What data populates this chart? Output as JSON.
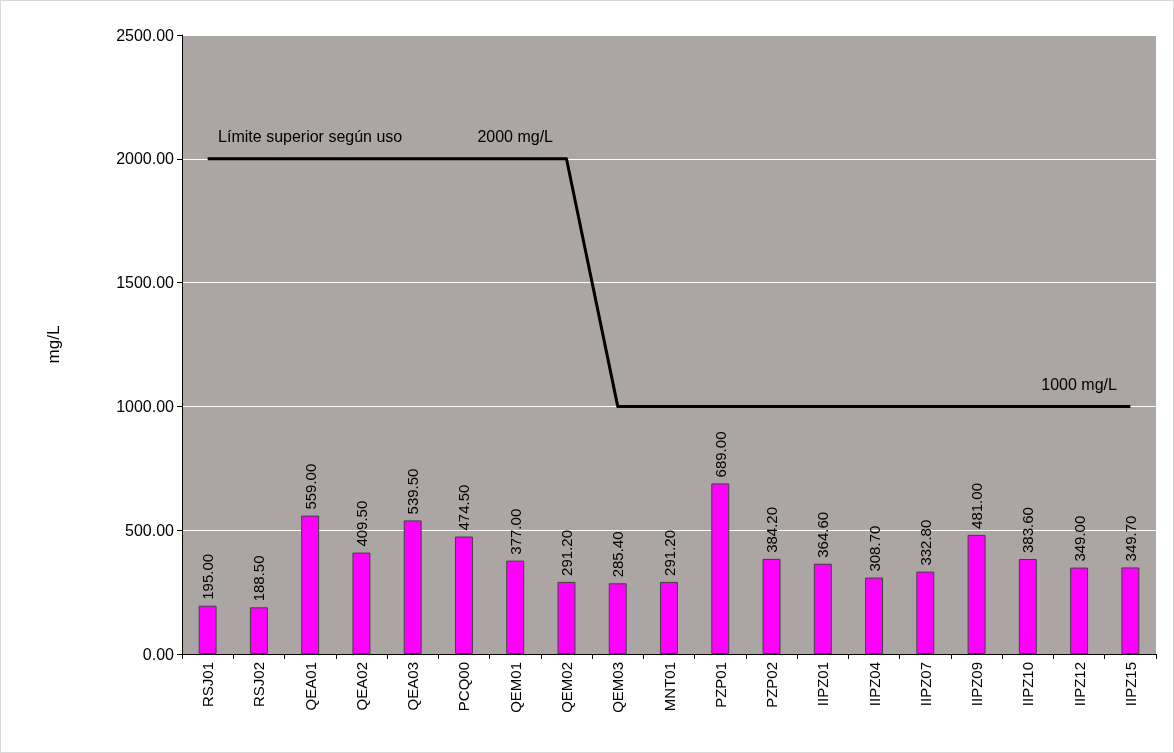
{
  "chart_data": {
    "type": "bar",
    "ylabel": "mg/L",
    "categories": [
      "RSJ01",
      "RSJ02",
      "QEA01",
      "QEA02",
      "QEA03",
      "PCQ00",
      "QEM01",
      "QEM02",
      "QEM03",
      "MNT01",
      "PZP01",
      "PZP02",
      "IIPZ01",
      "IIPZ04",
      "IIPZ07",
      "IIPZ09",
      "IIPZ10",
      "IIPZ12",
      "IIPZ15"
    ],
    "series": [
      {
        "color": "#ff00ff",
        "values": [
          195.0,
          188.5,
          559.0,
          409.5,
          539.5,
          474.5,
          377.0,
          291.2,
          285.4,
          291.2,
          689.0,
          384.2,
          364.6,
          308.7,
          332.8,
          481.0,
          383.6,
          349.0,
          349.7
        ],
        "value_labels": [
          "195.00",
          "188.50",
          "559.00",
          "409.50",
          "539.50",
          "474.50",
          "377.00",
          "291.20",
          "285.40",
          "291.20",
          "689.00",
          "384.20",
          "364.60",
          "308.70",
          "332.80",
          "481.00",
          "383.60",
          "349.00",
          "349.70"
        ]
      },
      {
        "type": "line",
        "color": "#000000",
        "marker": "none",
        "line_style": "solid",
        "values": [
          2000,
          2000,
          2000,
          2000,
          2000,
          2000,
          2000,
          2000,
          1000,
          1000,
          1000,
          1000,
          1000,
          1000,
          1000,
          1000,
          1000,
          1000,
          1000
        ]
      }
    ],
    "annotations": [
      {
        "text": "Límite superior según uso",
        "x": "QEA01",
        "y": 2000
      },
      {
        "text": "2000 mg/L",
        "x": "QEM01",
        "y": 2000
      },
      {
        "text": "1000 mg/L",
        "x": "IIPZ12",
        "y": 1000
      }
    ],
    "ylim": [
      0,
      2500
    ],
    "yticks": [
      {
        "value": 0,
        "label": "0.00"
      },
      {
        "value": 500,
        "label": "500.00"
      },
      {
        "value": 1000,
        "label": "1000.00"
      },
      {
        "value": 1500,
        "label": "1500.00"
      },
      {
        "value": 2000,
        "label": "2000.00"
      },
      {
        "value": 2500,
        "label": "2500.00"
      }
    ],
    "grid": "y"
  }
}
